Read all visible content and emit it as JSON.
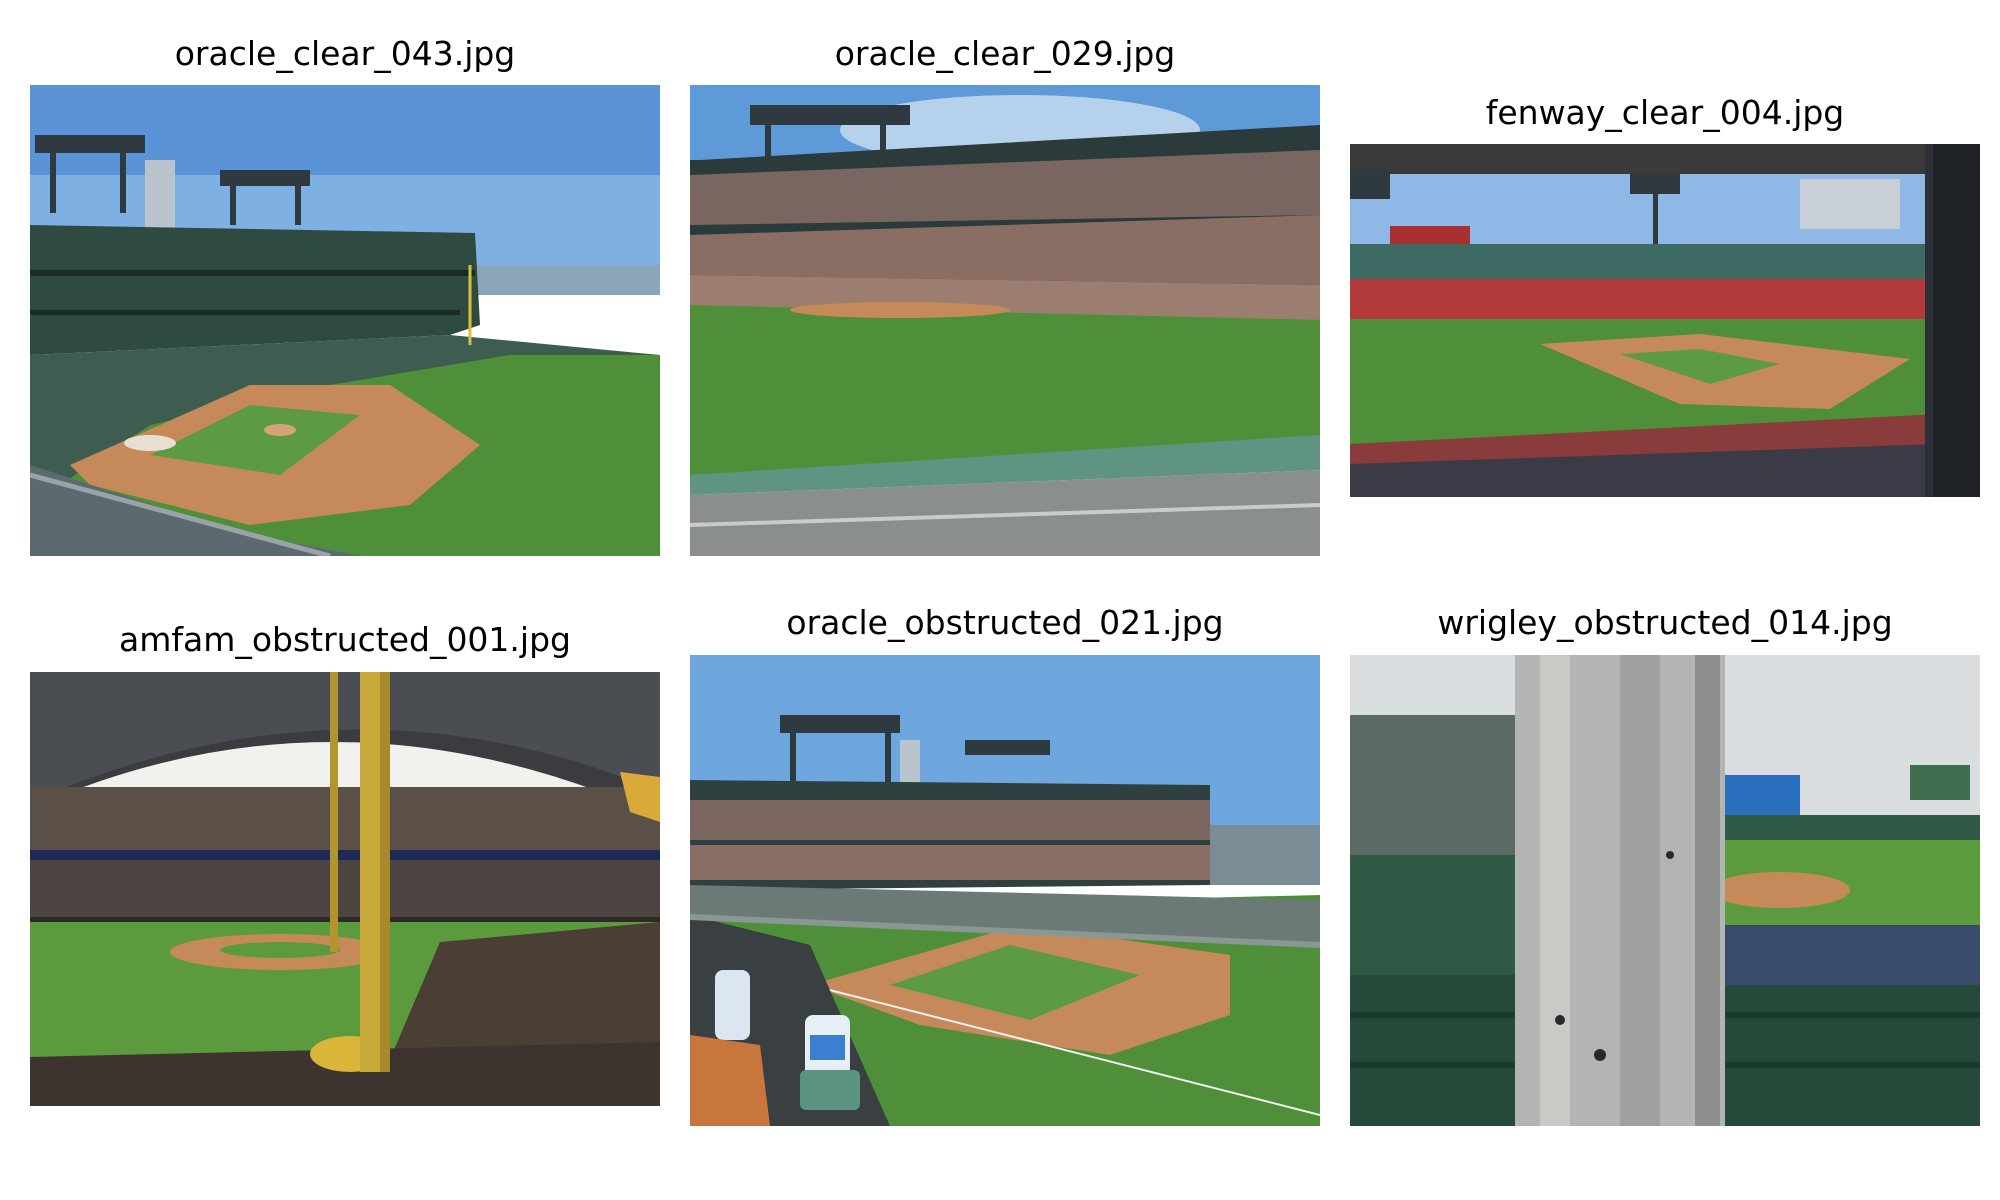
{
  "images": [
    {
      "filename": "oracle_clear_043.jpg"
    },
    {
      "filename": "oracle_clear_029.jpg"
    },
    {
      "filename": "fenway_clear_004.jpg"
    },
    {
      "filename": "amfam_obstructed_001.jpg"
    },
    {
      "filename": "oracle_obstructed_021.jpg"
    },
    {
      "filename": "wrigley_obstructed_014.jpg"
    }
  ],
  "colors": {
    "sky": "#6fa2d8",
    "grass": "#4f8f3a",
    "dirt": "#c68a5a",
    "stands": "#3d5a4c",
    "crowd": "#6b5e58",
    "rail": "#5f9483"
  }
}
